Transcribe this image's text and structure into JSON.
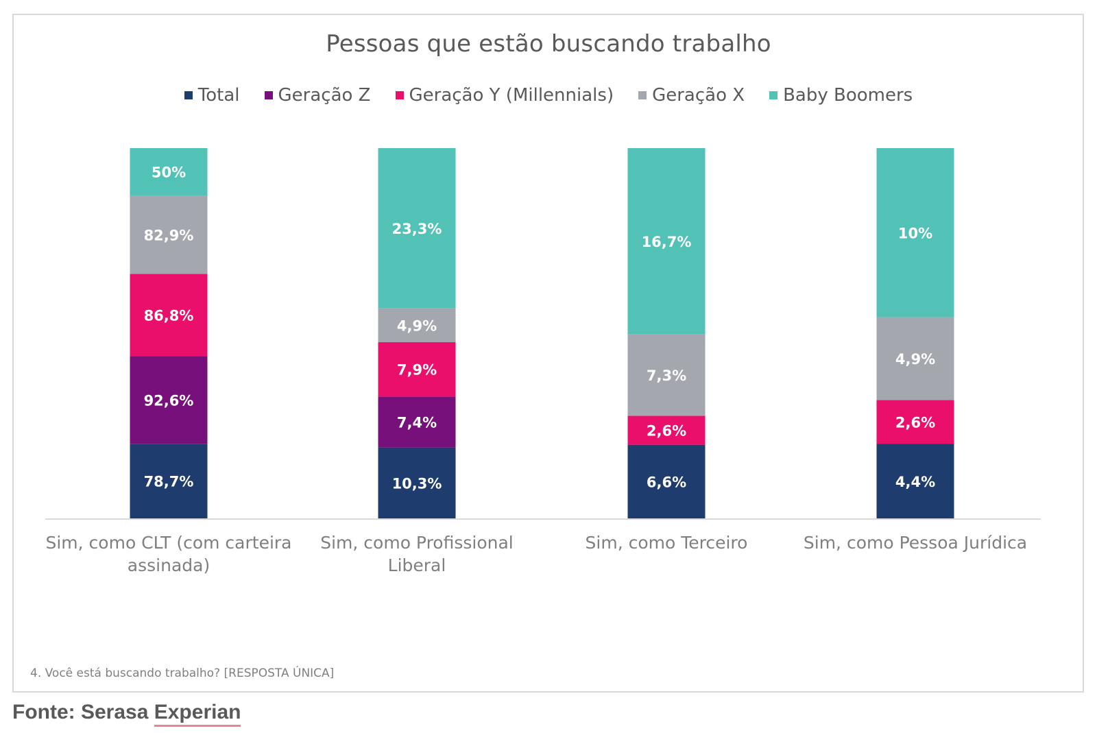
{
  "chart_data": {
    "type": "bar",
    "stacked": true,
    "title": "Pessoas que estão buscando trabalho",
    "categories": [
      [
        "Sim, como CLT (com carteira",
        "assinada)"
      ],
      [
        "Sim, como Profissional",
        "Liberal"
      ],
      [
        "Sim, como Terceiro"
      ],
      [
        "Sim, como Pessoa Jurídica"
      ]
    ],
    "series": [
      {
        "name": "Total",
        "color": "#1f3c6e",
        "values": [
          78.7,
          10.3,
          6.6,
          4.4
        ],
        "labels": [
          "78,7%",
          "10,3%",
          "6,6%",
          "4,4%"
        ]
      },
      {
        "name": "Geração Z",
        "color": "#77107a",
        "values": [
          92.6,
          7.4,
          0,
          0
        ],
        "labels": [
          "92,6%",
          "7,4%",
          "",
          ""
        ]
      },
      {
        "name": "Geração Y (Millennials)",
        "color": "#ea0f6b",
        "values": [
          86.8,
          7.9,
          2.6,
          2.6
        ],
        "labels": [
          "86,8%",
          "7,9%",
          "2,6%",
          "2,6%"
        ]
      },
      {
        "name": "Geração X",
        "color": "#a4a7ae",
        "values": [
          82.9,
          4.9,
          7.3,
          4.9
        ],
        "labels": [
          "82,9%",
          "4,9%",
          "7,3%",
          "4,9%"
        ]
      },
      {
        "name": "Baby Boomers",
        "color": "#52c2b7",
        "values": [
          50,
          23.3,
          16.7,
          10
        ],
        "labels": [
          "50%",
          "23,3%",
          "16,7%",
          "10%"
        ]
      }
    ],
    "legend_position": "top",
    "grid": false
  },
  "note": "4. Você está buscando trabalho? [RESPOSTA ÚNICA]",
  "source": {
    "prefix": "Fonte: Serasa ",
    "link": "Experian"
  }
}
